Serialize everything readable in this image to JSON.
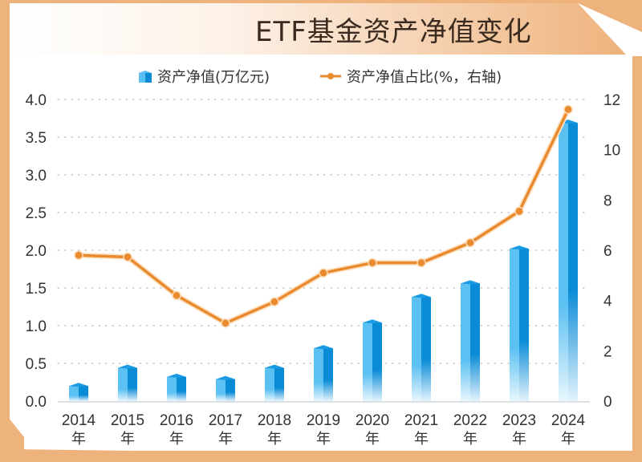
{
  "colors": {
    "frame": "#eeb27c",
    "bar_light": "#5bc0f2",
    "bar_dark": "#0a8bd6",
    "line": "#e98a2e",
    "grid": "#c8c8c8",
    "text": "#333333"
  },
  "chart_data": {
    "type": "bar+line",
    "title": "ETF基金资产净值变化",
    "categories": [
      "2014",
      "2015",
      "2016",
      "2017",
      "2018",
      "2019",
      "2020",
      "2021",
      "2022",
      "2023",
      "2024"
    ],
    "category_suffix": "年",
    "legend_position": "top-center",
    "grid": true,
    "series": [
      {
        "name": "资产净值(万亿元)",
        "type": "bar",
        "axis": "left",
        "values": [
          0.2,
          0.44,
          0.32,
          0.29,
          0.44,
          0.7,
          1.04,
          1.38,
          1.56,
          2.02,
          3.69
        ]
      },
      {
        "name": "资产净值占比(%，右轴)",
        "type": "line",
        "axis": "right",
        "values": [
          5.8,
          5.73,
          4.2,
          3.1,
          3.95,
          5.1,
          5.5,
          5.5,
          6.3,
          7.55,
          11.6
        ]
      }
    ],
    "left_axis": {
      "ylim": [
        0,
        4.0
      ],
      "ticks": [
        "0.0",
        "0.5",
        "1.0",
        "1.5",
        "2.0",
        "2.5",
        "3.0",
        "3.5",
        "4.0"
      ]
    },
    "right_axis": {
      "ylim": [
        0,
        12
      ],
      "ticks": [
        "0",
        "2",
        "4",
        "6",
        "8",
        "10",
        "12"
      ]
    }
  }
}
